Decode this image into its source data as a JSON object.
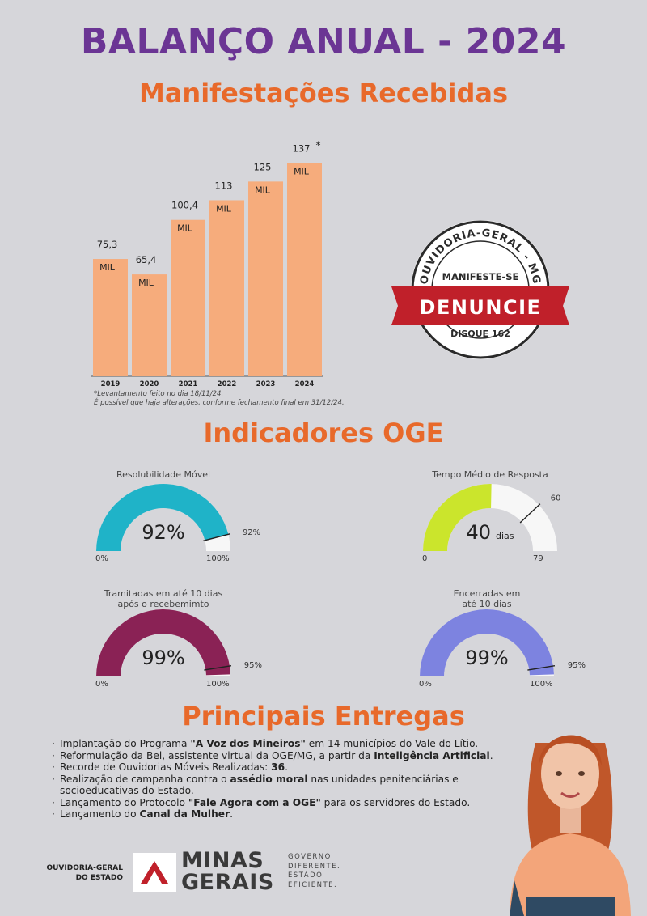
{
  "title": "BALANÇO ANUAL - 2024",
  "sections": {
    "received": "Manifestações Recebidas",
    "indicators": "Indicadores OGE",
    "deliveries": "Principais Entregas"
  },
  "chart_data": {
    "type": "bar",
    "categories": [
      "2019",
      "2020",
      "2021",
      "2022",
      "2023",
      "2024"
    ],
    "values": [
      75.3,
      65.4,
      100.4,
      113,
      125,
      137
    ],
    "value_labels": [
      "75,3",
      "65,4",
      "100,4",
      "113",
      "125",
      "137"
    ],
    "unit_label": "MIL",
    "asterisk": "*",
    "ylim": [
      0,
      150
    ],
    "bar_color": "#f6ac7c",
    "notes": [
      "*Levantamento feito no dia 18/11/24.",
      "É possível que haja alterações, conforme fechamento final em 31/12/24."
    ]
  },
  "seal": {
    "arc_text": "OUVIDORIA-GERAL - MG",
    "top": "MANIFESTE-SE",
    "banner": "DENUNCIE",
    "bottom": "DISQUE 162",
    "banner_color": "#c0202a"
  },
  "gauges": [
    {
      "title_lines": [
        "Resolubilidade Móvel"
      ],
      "value": 92,
      "max": 100,
      "target": 92,
      "display": "92%",
      "min_label": "0%",
      "max_label": "100%",
      "target_label": "92%",
      "color": "#1fb3c8"
    },
    {
      "title_lines": [
        "Tempo Médio de Resposta"
      ],
      "value": 40,
      "max": 79,
      "target": 60,
      "display": "40",
      "unit": "dias",
      "min_label": "0",
      "max_label": "79",
      "target_label": "60",
      "color": "#cbe52c"
    },
    {
      "title_lines": [
        "Tramitadas em até 10 dias",
        "após o recebemimto"
      ],
      "value": 99,
      "max": 100,
      "target": 95,
      "display": "99%",
      "min_label": "0%",
      "max_label": "100%",
      "target_label": "95%",
      "color": "#8a2255"
    },
    {
      "title_lines": [
        "Encerradas em",
        "até 10 dias"
      ],
      "value": 99,
      "max": 100,
      "target": 95,
      "display": "99%",
      "min_label": "0%",
      "max_label": "100%",
      "target_label": "95%",
      "color": "#7d83e0"
    }
  ],
  "deliveries": [
    [
      "Implantação do Programa ",
      {
        "b": "\"A Voz dos Mineiros\""
      },
      " em 14 municípios do Vale do Lítio."
    ],
    [
      "Reformulação da Bel, assistente virtual da OGE/MG, a partir da ",
      {
        "b": "Inteligência Artificial"
      },
      "."
    ],
    [
      "Recorde de Ouvidorias Móveis Realizadas: ",
      {
        "b": "36"
      },
      "."
    ],
    [
      "Realização de campanha contra o ",
      {
        "b": "assédio moral"
      },
      " nas unidades penitenciárias e socioeducativas do Estado."
    ],
    [
      "Lançamento do Protocolo ",
      {
        "b": "\"Fale Agora com a OGE\""
      },
      " para os servidores do Estado."
    ],
    [
      "Lançamento do ",
      {
        "b": "Canal da Mulher"
      },
      "."
    ]
  ],
  "footer": {
    "org_line1": "OUVIDORIA-GERAL",
    "org_line2": "DO ESTADO",
    "brand1": "MINAS",
    "brand2": "GERAIS",
    "slogan": [
      "GOVERNO",
      "DIFERENTE.",
      "ESTADO",
      "EFICIENTE."
    ]
  }
}
